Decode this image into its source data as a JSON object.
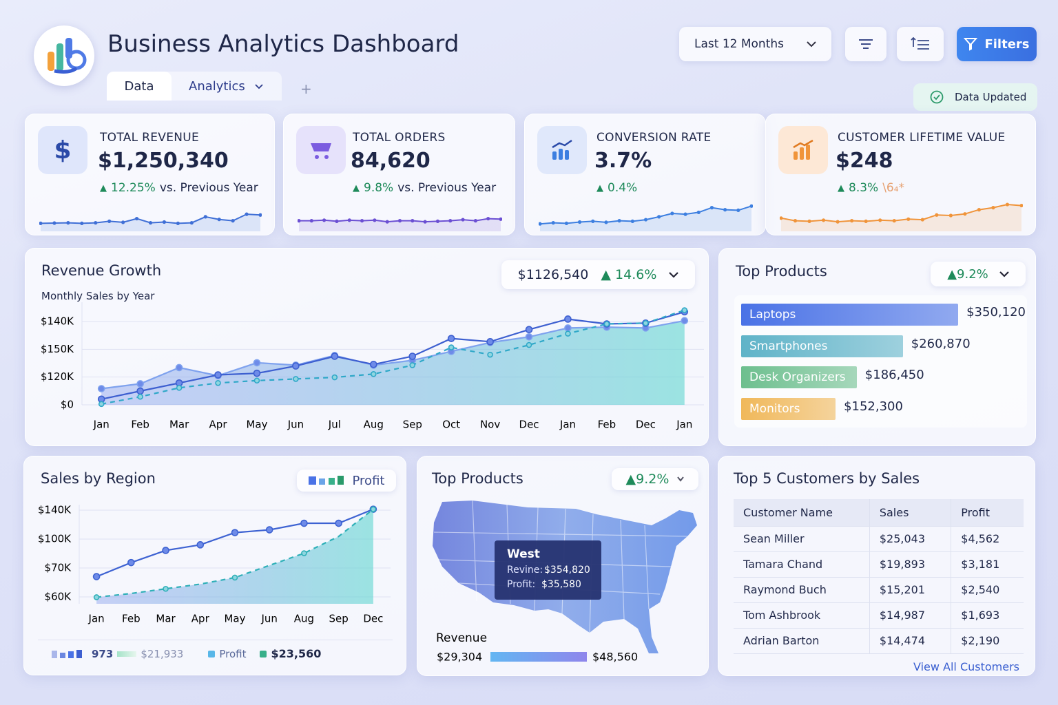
{
  "header": {
    "title": "Business Analytics Dashboard",
    "range": "Last 12 Months",
    "filters": "Filters",
    "tabs": [
      "Data",
      "Analytics"
    ],
    "tab_add": "+",
    "status": "Data Updated"
  },
  "kpis": [
    {
      "icon": "$",
      "label": "TOTAL REVENUE",
      "value": "$1,250,340",
      "change": "12.25%",
      "compare": "vs. Previous Year",
      "color": "#3f6fd6",
      "spark": [
        20,
        21,
        22,
        20,
        22,
        28,
        24,
        38,
        22,
        25,
        20,
        22,
        45,
        35,
        30,
        55,
        52
      ]
    },
    {
      "label": "TOTAL ORDERS",
      "value": "84,620",
      "change": "9.8%",
      "compare": "vs. Previous Year",
      "color": "#6b4fd3",
      "spark": [
        30,
        30,
        32,
        28,
        32,
        30,
        32,
        26,
        30,
        30,
        26,
        28,
        30,
        34,
        30,
        38,
        36
      ]
    },
    {
      "label": "CONVERSION RATE",
      "value": "3.7%",
      "change": "0.4%",
      "color": "#3d7fe0",
      "spark": [
        18,
        22,
        20,
        25,
        28,
        24,
        30,
        28,
        34,
        45,
        58,
        55,
        62,
        80,
        72,
        70,
        86
      ]
    },
    {
      "label": "CUSTOMER LIFETIME VALUE",
      "value": "$248",
      "change": "8.3%",
      "extra": "\\6₄*",
      "color": "#f0943a",
      "spark": [
        40,
        30,
        28,
        32,
        26,
        30,
        28,
        32,
        30,
        36,
        34,
        52,
        50,
        56,
        72,
        80,
        92,
        88
      ]
    }
  ],
  "revenue_growth": {
    "type": "line",
    "title": "Revenue Growth",
    "subtitle": "Monthly Sales by Year",
    "summary_value": "$1126,540",
    "summary_change": "14.6%",
    "y_labels": [
      "$140K",
      "$150K",
      "$120K",
      "$0"
    ],
    "categories": [
      "Jan",
      "Feb",
      "Mar",
      "Apr",
      "May",
      "Jun",
      "Jul",
      "Aug",
      "Sep",
      "Oct",
      "Nov",
      "Dec",
      "Jan",
      "Feb",
      "Dec",
      "Jan"
    ],
    "ylim": [
      0,
      120
    ],
    "series": [
      {
        "color": "#7fa2ee",
        "values": [
          20,
          26,
          46,
          36,
          52,
          49,
          61,
          49,
          55,
          66,
          77,
          84,
          95,
          96,
          95,
          104
        ]
      },
      {
        "color": "#3d5fd0",
        "values": [
          7,
          17,
          27,
          37,
          39,
          48,
          60,
          50,
          60,
          82,
          78,
          93,
          106,
          100,
          101,
          115
        ]
      },
      {
        "color": "#2fa8c8",
        "dashed": true,
        "values": [
          1,
          10,
          21,
          27,
          30,
          32,
          34,
          38,
          49,
          71,
          62,
          74,
          88,
          100,
          101,
          117
        ]
      }
    ]
  },
  "top_products": {
    "type": "bar",
    "title": "Top Products",
    "change": "9.2%",
    "xlim": [
      0,
      350000
    ],
    "categories": [
      "Laptops",
      "Smartphones",
      "Desk Organizers",
      "Monitors"
    ],
    "values": [
      350120,
      260870,
      186450,
      152300
    ],
    "value_labels": [
      "$350,120",
      "$260,870",
      "$186,450",
      "$152,300"
    ],
    "colors": [
      "#4a72e6",
      "#5fb3c8",
      "#6dbf8e",
      "#f0b85a"
    ]
  },
  "sales_region": {
    "type": "line",
    "title": "Sales by Region",
    "legend": "Profit",
    "y_labels": [
      "$140K",
      "$100K",
      "$70K",
      "$60K"
    ],
    "categories": [
      "Jan",
      "Feb",
      "Mar",
      "Apr",
      "May",
      "Jun",
      "Aug",
      "Sep",
      "Dec"
    ],
    "ylim": [
      0,
      100
    ],
    "series": [
      {
        "color": "#3d62d2",
        "values": [
          29,
          44,
          57,
          63,
          76,
          79,
          86,
          86,
          101
        ]
      },
      {
        "color": "#2fb0b8",
        "dashed": true,
        "values": [
          7,
          11,
          16,
          21,
          28,
          41,
          54,
          72,
          101
        ]
      }
    ],
    "footer": {
      "count": "973",
      "amount": "$21,933",
      "profit_label": "Profit",
      "profit": "$23,560"
    }
  },
  "map": {
    "title": "Top Products",
    "change": "9.2%",
    "tooltip": {
      "region": "West",
      "revenue_label": "Revine:",
      "revenue": "$354,820",
      "profit_label": "Profit:",
      "profit": "$35,580"
    },
    "legend_title": "Revenue",
    "legend_min": "$29,304",
    "legend_max": "$48,560"
  },
  "customers": {
    "title": "Top 5 Customers by Sales",
    "columns": [
      "Customer Name",
      "Sales",
      "Profit"
    ],
    "rows": [
      [
        "Sean Miller",
        "$25,043",
        "$4,562"
      ],
      [
        "Tamara Chand",
        "$19,893",
        "$3,181"
      ],
      [
        "Raymond Buch",
        "$15,201",
        "$2,540"
      ],
      [
        "Tom Ashbrook",
        "$14,987",
        "$1,693"
      ],
      [
        "Adrian Barton",
        "$14,474",
        "$2,190"
      ]
    ],
    "link": "View All Customers"
  }
}
